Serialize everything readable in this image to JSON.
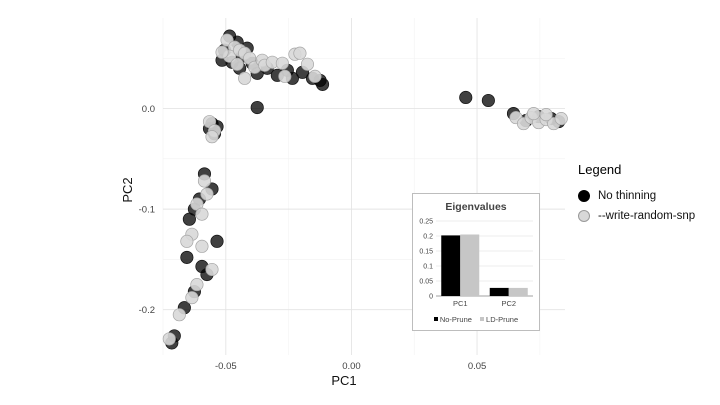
{
  "chart_data": [
    {
      "type": "scatter",
      "xlabel": "PC1",
      "ylabel": "PC2",
      "xlim": [
        -0.075,
        0.085
      ],
      "ylim": [
        -0.245,
        0.09
      ],
      "x_ticks": [
        -0.05,
        0.0,
        0.05
      ],
      "x_tick_labels": [
        "-0.05",
        "0.00",
        "0.05"
      ],
      "y_ticks": [
        -0.2,
        -0.1,
        0.0
      ],
      "y_tick_labels": [
        "-0.2",
        "-0.1",
        "0.0"
      ],
      "grid": true,
      "legend_position": "right",
      "legend_title": "Legend",
      "series": [
        {
          "name": "No thinning",
          "color": "#000000",
          "points": [
            [
              -0.0485,
              0.072
            ],
            [
              -0.0455,
              0.066
            ],
            [
              -0.0505,
              0.058
            ],
            [
              -0.0475,
              0.046
            ],
            [
              -0.0515,
              0.048
            ],
            [
              -0.0435,
              0.052
            ],
            [
              -0.0415,
              0.06
            ],
            [
              -0.0445,
              0.04
            ],
            [
              -0.0395,
              0.045
            ],
            [
              -0.0375,
              0.035
            ],
            [
              -0.0335,
              0.04
            ],
            [
              -0.0295,
              0.033
            ],
            [
              -0.0255,
              0.038
            ],
            [
              -0.0235,
              0.03
            ],
            [
              -0.0195,
              0.036
            ],
            [
              -0.0155,
              0.03
            ],
            [
              -0.0125,
              0.028
            ],
            [
              -0.0115,
              0.024
            ],
            [
              -0.0375,
              0.001
            ],
            [
              -0.0555,
              -0.015
            ],
            [
              -0.0565,
              -0.02
            ],
            [
              -0.0545,
              -0.025
            ],
            [
              -0.0535,
              -0.018
            ],
            [
              -0.0585,
              -0.065
            ],
            [
              -0.0555,
              -0.08
            ],
            [
              -0.0605,
              -0.09
            ],
            [
              -0.0625,
              -0.1
            ],
            [
              -0.0645,
              -0.11
            ],
            [
              -0.0535,
              -0.132
            ],
            [
              -0.0655,
              -0.148
            ],
            [
              -0.0595,
              -0.157
            ],
            [
              -0.0575,
              -0.165
            ],
            [
              -0.0625,
              -0.182
            ],
            [
              -0.0665,
              -0.198
            ],
            [
              -0.0705,
              -0.226
            ],
            [
              -0.0715,
              -0.233
            ],
            [
              0.0455,
              0.011
            ],
            [
              0.0545,
              0.008
            ],
            [
              0.0645,
              -0.005
            ],
            [
              0.0695,
              -0.012
            ],
            [
              0.0745,
              -0.008
            ],
            [
              0.0795,
              -0.01
            ],
            [
              0.0825,
              -0.013
            ]
          ]
        },
        {
          "name": "--write-random-snp",
          "color": "#d8d8d8",
          "points": [
            [
              -0.0495,
              0.068
            ],
            [
              -0.0465,
              0.061
            ],
            [
              -0.0485,
              0.052
            ],
            [
              -0.0515,
              0.056
            ],
            [
              -0.0445,
              0.058
            ],
            [
              -0.0425,
              0.055
            ],
            [
              -0.0455,
              0.044
            ],
            [
              -0.0405,
              0.05
            ],
            [
              -0.0385,
              0.041
            ],
            [
              -0.0355,
              0.048
            ],
            [
              -0.0345,
              0.043
            ],
            [
              -0.0315,
              0.046
            ],
            [
              -0.0275,
              0.045
            ],
            [
              -0.0225,
              0.054
            ],
            [
              -0.0205,
              0.055
            ],
            [
              -0.0175,
              0.044
            ],
            [
              -0.0265,
              0.032
            ],
            [
              -0.0145,
              0.032
            ],
            [
              -0.0425,
              0.03
            ],
            [
              -0.0565,
              -0.013
            ],
            [
              -0.0545,
              -0.022
            ],
            [
              -0.0555,
              -0.028
            ],
            [
              -0.0585,
              -0.072
            ],
            [
              -0.0575,
              -0.085
            ],
            [
              -0.0615,
              -0.095
            ],
            [
              -0.0595,
              -0.105
            ],
            [
              -0.0635,
              -0.125
            ],
            [
              -0.0655,
              -0.132
            ],
            [
              -0.0595,
              -0.137
            ],
            [
              -0.0555,
              -0.16
            ],
            [
              -0.0615,
              -0.175
            ],
            [
              -0.0635,
              -0.188
            ],
            [
              -0.0685,
              -0.205
            ],
            [
              -0.0725,
              -0.229
            ],
            [
              0.0655,
              -0.009
            ],
            [
              0.0685,
              -0.015
            ],
            [
              0.0715,
              -0.009
            ],
            [
              0.0745,
              -0.014
            ],
            [
              0.0775,
              -0.011
            ],
            [
              0.0805,
              -0.015
            ],
            [
              0.0775,
              -0.006
            ],
            [
              0.0835,
              -0.01
            ],
            [
              0.0725,
              -0.005
            ]
          ]
        }
      ]
    },
    {
      "type": "bar",
      "title": "Eigenvalues",
      "categories": [
        "PC1",
        "PC2"
      ],
      "ylim": [
        0,
        0.25
      ],
      "y_ticks": [
        0,
        0.05,
        0.1,
        0.15,
        0.2,
        0.25
      ],
      "y_tick_labels": [
        "0",
        "0.05",
        "0.1",
        "0.15",
        "0.2",
        "0.25"
      ],
      "series": [
        {
          "name": "No-Prune",
          "color": "#000000",
          "values": [
            0.202,
            0.027
          ]
        },
        {
          "name": "LD-Prune",
          "color": "#c6c6c6",
          "values": [
            0.205,
            0.027
          ]
        }
      ]
    }
  ]
}
